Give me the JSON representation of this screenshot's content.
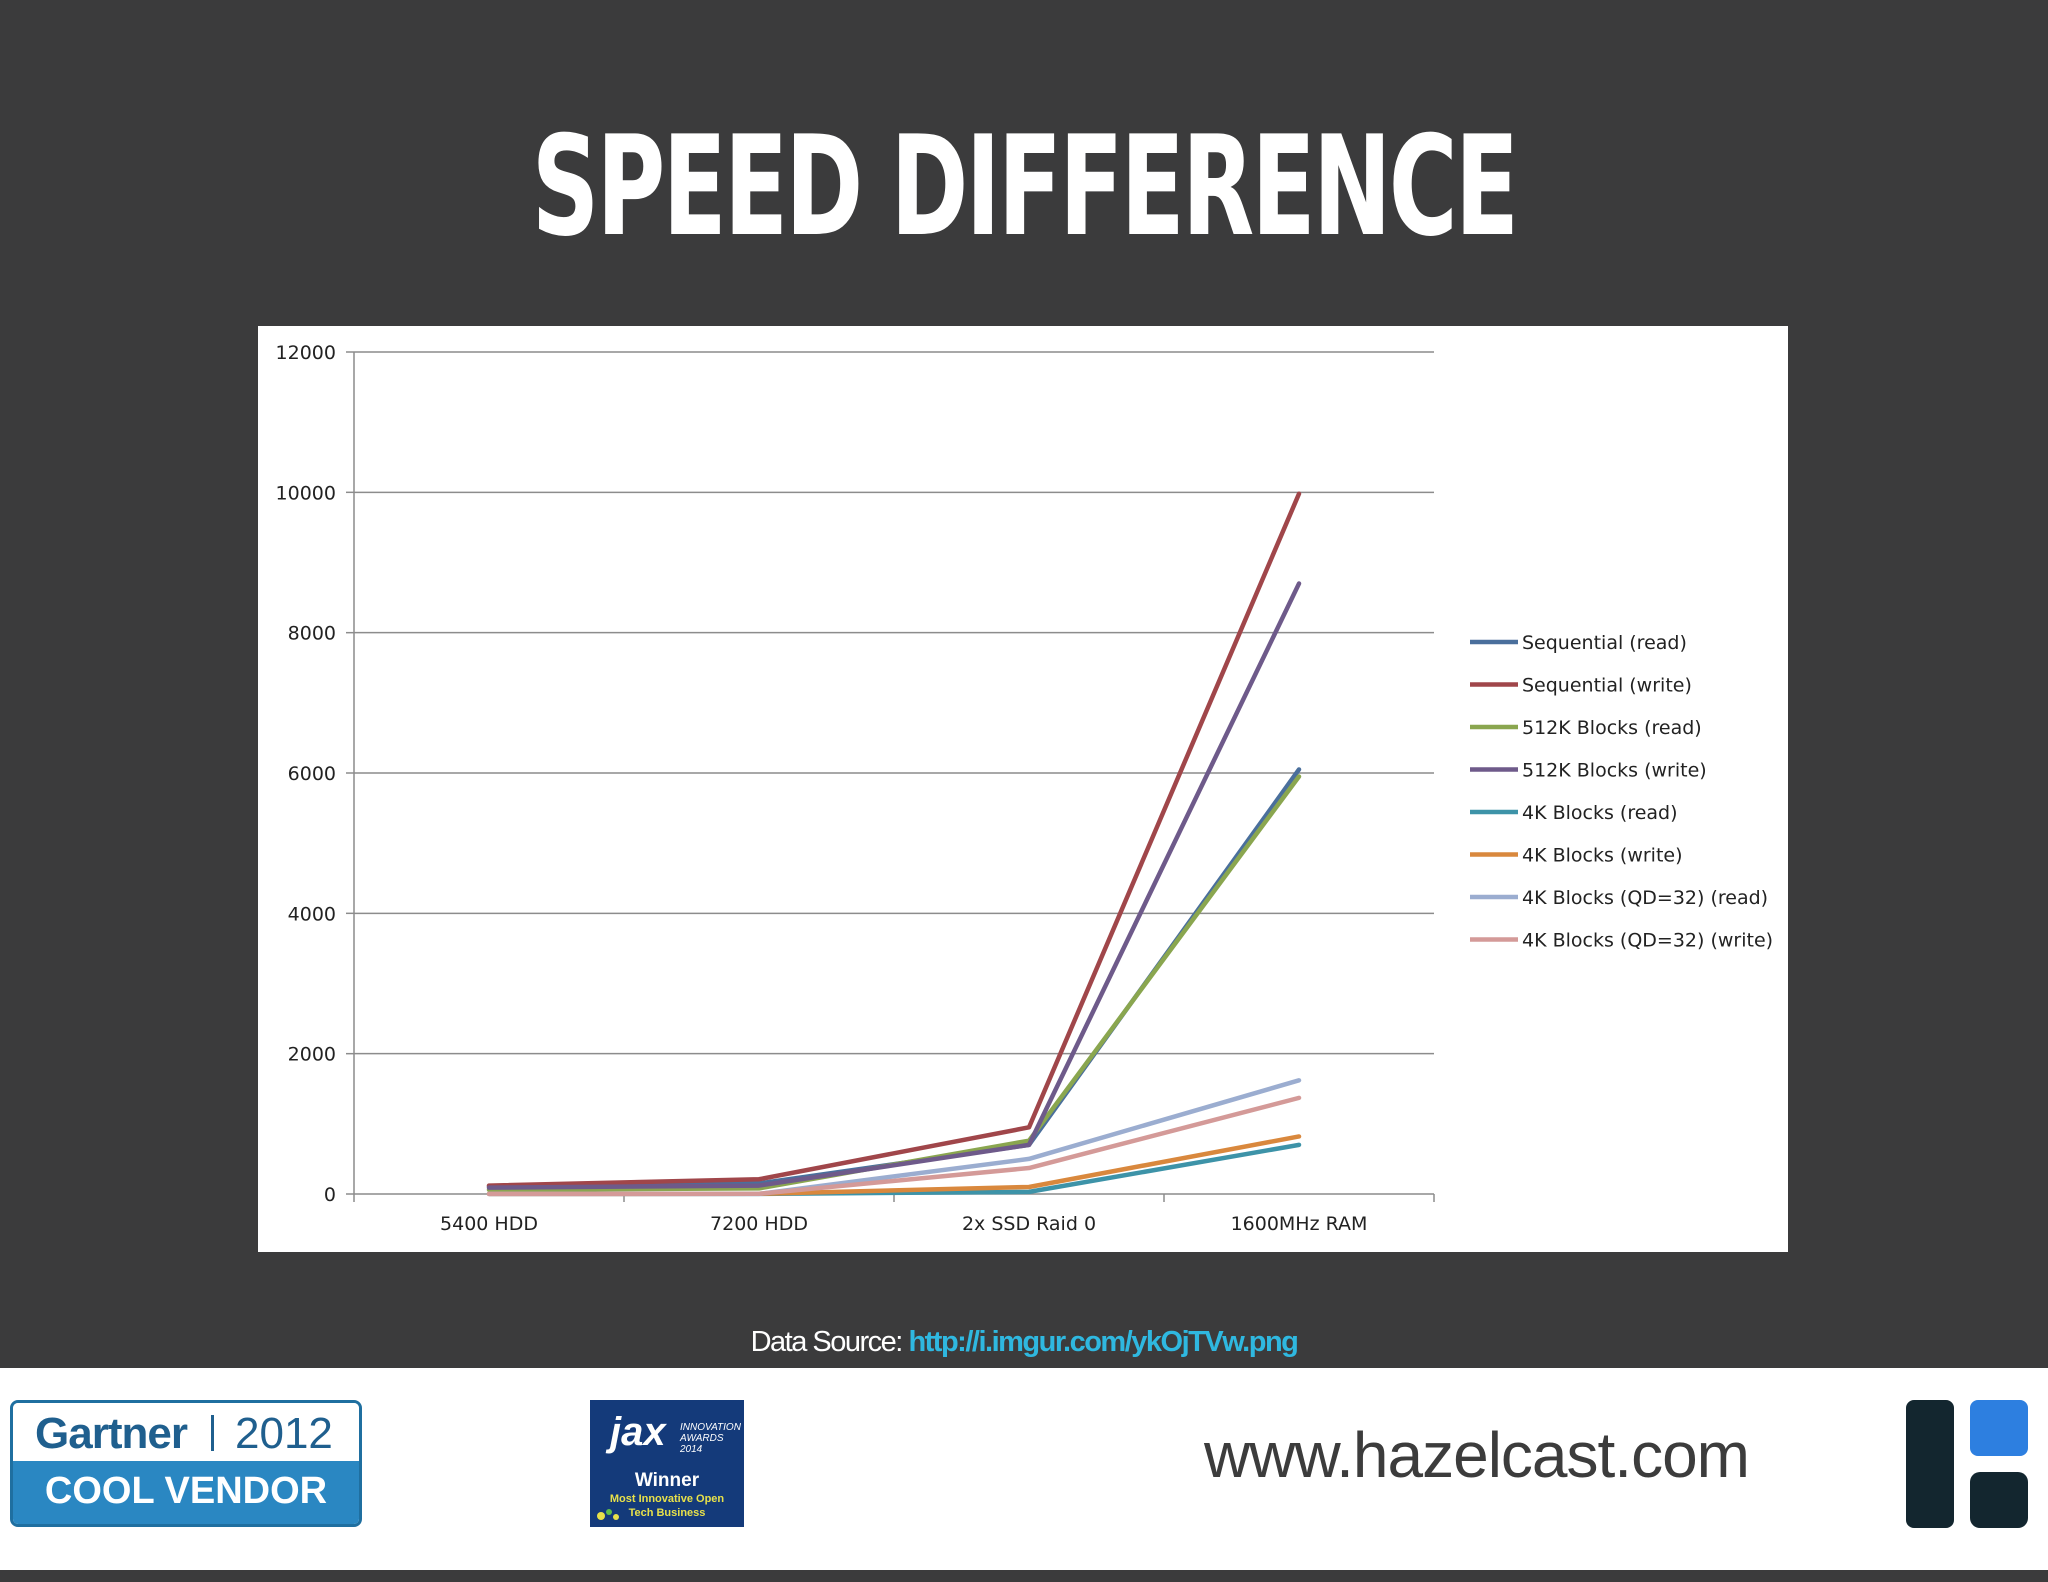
{
  "slide": {
    "title": "SPEED DIFFERENCE",
    "source_label": "Data Source: ",
    "source_link": "http://i.imgur.com/ykOjTVw.png"
  },
  "footer": {
    "gartner_brand": "Gartner",
    "gartner_year": "2012",
    "gartner_label": "COOL VENDOR",
    "jax_logo": "jax",
    "jax_awards_line1": "INNOVATION",
    "jax_awards_line2": "AWARDS 2014",
    "jax_winner": "Winner",
    "jax_sub_line1": "Most Innovative Open",
    "jax_sub_line2": "Tech Business",
    "url": "www.hazelcast.com"
  },
  "colors": {
    "background": "#3b3b3c",
    "link": "#2fb8e0"
  },
  "chart_data": {
    "type": "line",
    "title": "",
    "xlabel": "",
    "ylabel": "",
    "categories": [
      "5400 HDD",
      "7200 HDD",
      "2x SSD Raid 0",
      "1600MHz RAM"
    ],
    "ylim": [
      0,
      12000
    ],
    "yticks": [
      0,
      2000,
      4000,
      6000,
      8000,
      10000,
      12000
    ],
    "grid": true,
    "legend_position": "right",
    "series": [
      {
        "name": "Sequential (read)",
        "color": "#4a6f9c",
        "values": [
          110,
          150,
          700,
          6050
        ]
      },
      {
        "name": "Sequential (write)",
        "color": "#a0464a",
        "values": [
          120,
          210,
          950,
          9980
        ]
      },
      {
        "name": "512K Blocks (read)",
        "color": "#8aa64f",
        "values": [
          60,
          80,
          760,
          5950
        ]
      },
      {
        "name": "512K Blocks (write)",
        "color": "#6e5a8a",
        "values": [
          90,
          120,
          700,
          8700
        ]
      },
      {
        "name": "4K Blocks (read)",
        "color": "#3d93a8",
        "values": [
          1,
          2,
          30,
          700
        ]
      },
      {
        "name": "4K Blocks (write)",
        "color": "#d9883d",
        "values": [
          2,
          3,
          100,
          820
        ]
      },
      {
        "name": "4K Blocks (QD=32) (read)",
        "color": "#9badd0",
        "values": [
          1,
          2,
          500,
          1620
        ]
      },
      {
        "name": "4K Blocks (QD=32) (write)",
        "color": "#d49a98",
        "values": [
          2,
          3,
          370,
          1370
        ]
      }
    ]
  }
}
